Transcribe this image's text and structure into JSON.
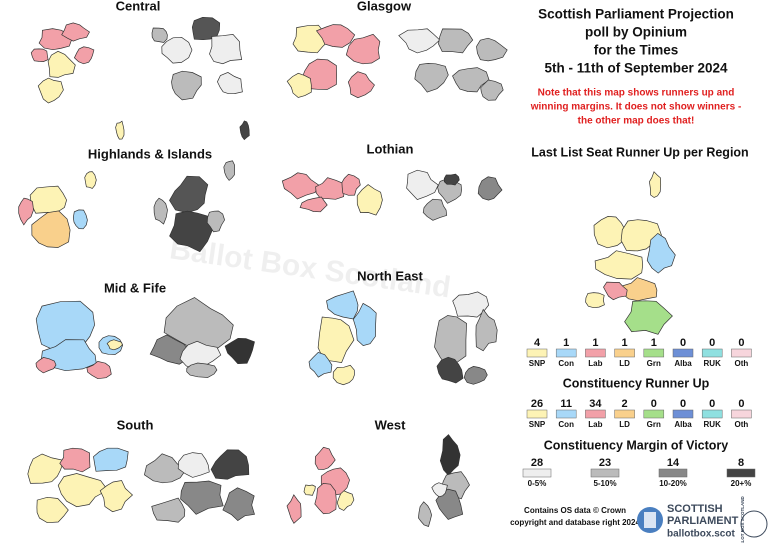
{
  "title": {
    "lines": [
      "Scottish Parliament Projection",
      "poll by Opinium",
      "for the Times",
      "5th - 11th of September 2024"
    ]
  },
  "note": {
    "lines": [
      "Note that this map shows runners up and",
      "winning margins. It does not show winners -",
      "the other map does that!"
    ]
  },
  "regions": [
    "Central",
    "Glasgow",
    "Highlands & Islands",
    "Lothian",
    "Mid & Fife",
    "North East",
    "South",
    "West"
  ],
  "parties": [
    {
      "label": "SNP",
      "color": "#fdf3b5"
    },
    {
      "label": "Con",
      "color": "#a8d8f8"
    },
    {
      "label": "Lab",
      "color": "#f2a0a8"
    },
    {
      "label": "LD",
      "color": "#f9d08c"
    },
    {
      "label": "Grn",
      "color": "#a5df8a"
    },
    {
      "label": "Alba",
      "color": "#6d8fd6"
    },
    {
      "label": "RUK",
      "color": "#8fe0e0"
    },
    {
      "label": "Oth",
      "color": "#f7d5dc"
    }
  ],
  "list_runner_up": {
    "title": "Last List Seat Runner Up per Region",
    "counts": [
      4,
      1,
      1,
      1,
      1,
      0,
      0,
      0
    ]
  },
  "constituency_runner_up": {
    "title": "Constituency Runner Up",
    "counts": [
      26,
      11,
      34,
      2,
      0,
      0,
      0,
      0
    ]
  },
  "margin": {
    "title": "Constituency Margin of Victory",
    "bands": [
      {
        "label": "0-5%",
        "count": 28,
        "color": "#eeeeee"
      },
      {
        "label": "5-10%",
        "count": 23,
        "color": "#bbbbbb"
      },
      {
        "label": "10-20%",
        "count": 14,
        "color": "#888888"
      },
      {
        "label": "20+%",
        "count": 8,
        "color": "#444444"
      }
    ]
  },
  "credit": {
    "lines": [
      "Contains OS data © Crown",
      "copyright and database right 2024"
    ]
  },
  "logo": {
    "name_lines": [
      "SCOTTISH",
      "PARLIAMENT"
    ],
    "site": "ballotbox.scot",
    "badge": "BALLOT BOX SCOTLAND"
  },
  "watermark": "Ballot Box Scotland"
}
